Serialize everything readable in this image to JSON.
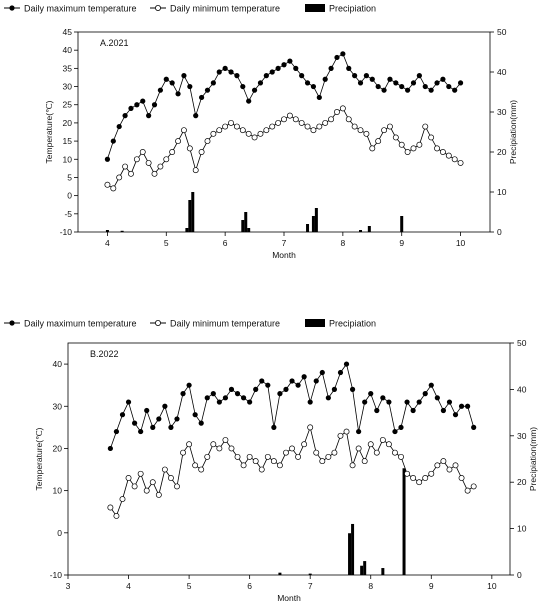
{
  "chart_data": [
    {
      "type": "line",
      "panel_label": "A.2021",
      "xlabel": "Month",
      "ylabel": "Temperature(℃)",
      "y2label": "Precipiation(mm)",
      "xlim": [
        3.5,
        10.5
      ],
      "ylim": [
        -10,
        45
      ],
      "y2lim": [
        0,
        50
      ],
      "xticks": [
        "4",
        "5",
        "6",
        "7",
        "8",
        "9",
        "10"
      ],
      "yticks": [
        "-10",
        "-5",
        "0",
        "5",
        "10",
        "15",
        "20",
        "25",
        "30",
        "35",
        "40",
        "45"
      ],
      "y2ticks": [
        "0",
        "10",
        "20",
        "30",
        "40",
        "50"
      ],
      "legend": {
        "position": "top",
        "max_label": "Daily maximum temperature",
        "min_label": "Daily minimum temperature",
        "precip_label": "Precipiation"
      },
      "tmax": {
        "x": [
          4,
          4.1,
          4.2,
          4.3,
          4.4,
          4.5,
          4.6,
          4.7,
          4.8,
          4.9,
          5,
          5.1,
          5.2,
          5.3,
          5.4,
          5.5,
          5.6,
          5.7,
          5.8,
          5.9,
          6,
          6.1,
          6.2,
          6.3,
          6.4,
          6.5,
          6.6,
          6.7,
          6.8,
          6.9,
          7,
          7.1,
          7.2,
          7.3,
          7.4,
          7.5,
          7.6,
          7.7,
          7.8,
          7.9,
          8,
          8.1,
          8.2,
          8.3,
          8.4,
          8.5,
          8.6,
          8.7,
          8.8,
          8.9,
          9,
          9.1,
          9.2,
          9.3,
          9.4,
          9.5,
          9.6,
          9.7,
          9.8,
          9.9,
          10
        ],
        "values": [
          10,
          15,
          19,
          22,
          24,
          25,
          26,
          22,
          25,
          29,
          32,
          31,
          28,
          33,
          30,
          22,
          27,
          29,
          31,
          34,
          35,
          34,
          33,
          30,
          26,
          29,
          31,
          33,
          34,
          35,
          36,
          37,
          35,
          33,
          31,
          30,
          27,
          32,
          35,
          38,
          39,
          35,
          33,
          31,
          33,
          32,
          30,
          29,
          32,
          31,
          30,
          29,
          31,
          33,
          30,
          29,
          31,
          32,
          30,
          29,
          31
        ]
      },
      "tmin": {
        "x": [
          4,
          4.1,
          4.2,
          4.3,
          4.4,
          4.5,
          4.6,
          4.7,
          4.8,
          4.9,
          5,
          5.1,
          5.2,
          5.3,
          5.4,
          5.5,
          5.6,
          5.7,
          5.8,
          5.9,
          6,
          6.1,
          6.2,
          6.3,
          6.4,
          6.5,
          6.6,
          6.7,
          6.8,
          6.9,
          7,
          7.1,
          7.2,
          7.3,
          7.4,
          7.5,
          7.6,
          7.7,
          7.8,
          7.9,
          8,
          8.1,
          8.2,
          8.3,
          8.4,
          8.5,
          8.6,
          8.7,
          8.8,
          8.9,
          9,
          9.1,
          9.2,
          9.3,
          9.4,
          9.5,
          9.6,
          9.7,
          9.8,
          9.9,
          10
        ],
        "values": [
          3,
          2,
          5,
          8,
          6,
          10,
          12,
          9,
          6,
          8,
          10,
          12,
          15,
          18,
          13,
          7,
          12,
          15,
          17,
          18,
          19,
          20,
          19,
          18,
          17,
          16,
          17,
          18,
          19,
          20,
          21,
          22,
          21,
          20,
          19,
          18,
          19,
          20,
          21,
          23,
          24,
          21,
          19,
          18,
          17,
          13,
          15,
          18,
          19,
          16,
          14,
          12,
          13,
          14,
          19,
          16,
          13,
          12,
          11,
          10,
          9
        ]
      },
      "precip": {
        "x": [
          4,
          4.25,
          5.35,
          5.4,
          5.45,
          6.3,
          6.35,
          6.4,
          7.4,
          7.5,
          7.55,
          8.3,
          8.45,
          9
        ],
        "values": [
          0.5,
          0.3,
          1,
          8,
          10,
          3,
          5,
          1,
          2,
          4,
          6,
          0.5,
          1.5,
          4
        ]
      }
    },
    {
      "type": "line",
      "panel_label": "B.2022",
      "xlabel": "Month",
      "ylabel": "Temperature(℃)",
      "y2label": "Precipiation(mm)",
      "xlim": [
        3,
        10.3
      ],
      "ylim": [
        -10,
        45
      ],
      "y2lim": [
        0,
        50
      ],
      "xticks": [
        "3",
        "4",
        "5",
        "6",
        "7",
        "8",
        "9",
        "10"
      ],
      "yticks": [
        "-10",
        "0",
        "10",
        "20",
        "30",
        "40"
      ],
      "y2ticks": [
        "0",
        "10",
        "20",
        "30",
        "40",
        "50"
      ],
      "legend": {
        "position": "top",
        "max_label": "Daily maximum temperature",
        "min_label": "Daily minimum temperature",
        "precip_label": "Precipiation"
      },
      "tmax": {
        "x": [
          3.7,
          3.8,
          3.9,
          4,
          4.1,
          4.2,
          4.3,
          4.4,
          4.5,
          4.6,
          4.7,
          4.8,
          4.9,
          5,
          5.1,
          5.2,
          5.3,
          5.4,
          5.5,
          5.6,
          5.7,
          5.8,
          5.9,
          6,
          6.1,
          6.2,
          6.3,
          6.4,
          6.5,
          6.6,
          6.7,
          6.8,
          6.9,
          7,
          7.1,
          7.2,
          7.3,
          7.4,
          7.5,
          7.6,
          7.7,
          7.8,
          7.9,
          8,
          8.1,
          8.2,
          8.3,
          8.4,
          8.5,
          8.6,
          8.7,
          8.8,
          8.9,
          9,
          9.1,
          9.2,
          9.3,
          9.4,
          9.5,
          9.6,
          9.7
        ],
        "values": [
          20,
          24,
          28,
          31,
          26,
          24,
          29,
          25,
          27,
          30,
          25,
          27,
          33,
          35,
          28,
          26,
          32,
          33,
          31,
          32,
          34,
          33,
          32,
          31,
          34,
          36,
          35,
          25,
          33,
          34,
          36,
          35,
          37,
          31,
          36,
          38,
          32,
          34,
          38,
          40,
          34,
          24,
          31,
          33,
          29,
          32,
          31,
          24,
          25,
          31,
          29,
          31,
          33,
          35,
          32,
          29,
          31,
          28,
          30,
          30,
          25
        ]
      },
      "tmin": {
        "x": [
          3.7,
          3.8,
          3.9,
          4,
          4.1,
          4.2,
          4.3,
          4.4,
          4.5,
          4.6,
          4.7,
          4.8,
          4.9,
          5,
          5.1,
          5.2,
          5.3,
          5.4,
          5.5,
          5.6,
          5.7,
          5.8,
          5.9,
          6,
          6.1,
          6.2,
          6.3,
          6.4,
          6.5,
          6.6,
          6.7,
          6.8,
          6.9,
          7,
          7.1,
          7.2,
          7.3,
          7.4,
          7.5,
          7.6,
          7.7,
          7.8,
          7.9,
          8,
          8.1,
          8.2,
          8.3,
          8.4,
          8.5,
          8.6,
          8.7,
          8.8,
          8.9,
          9,
          9.1,
          9.2,
          9.3,
          9.4,
          9.5,
          9.6,
          9.7
        ],
        "values": [
          6,
          4,
          8,
          13,
          11,
          14,
          10,
          12,
          9,
          15,
          13,
          11,
          19,
          21,
          16,
          15,
          18,
          21,
          20,
          22,
          20,
          18,
          16,
          18,
          17,
          15,
          18,
          17,
          16,
          19,
          20,
          18,
          21,
          25,
          19,
          17,
          18,
          19,
          23,
          24,
          16,
          20,
          17,
          21,
          19,
          22,
          21,
          19,
          18,
          14,
          13,
          12,
          13,
          14,
          16,
          17,
          15,
          16,
          13,
          10,
          11
        ]
      },
      "precip": {
        "x": [
          6.5,
          7,
          7.65,
          7.7,
          7.85,
          7.9,
          8.2,
          8.55
        ],
        "values": [
          0.5,
          0.3,
          9,
          11,
          2,
          3,
          1.5,
          23
        ]
      }
    }
  ]
}
